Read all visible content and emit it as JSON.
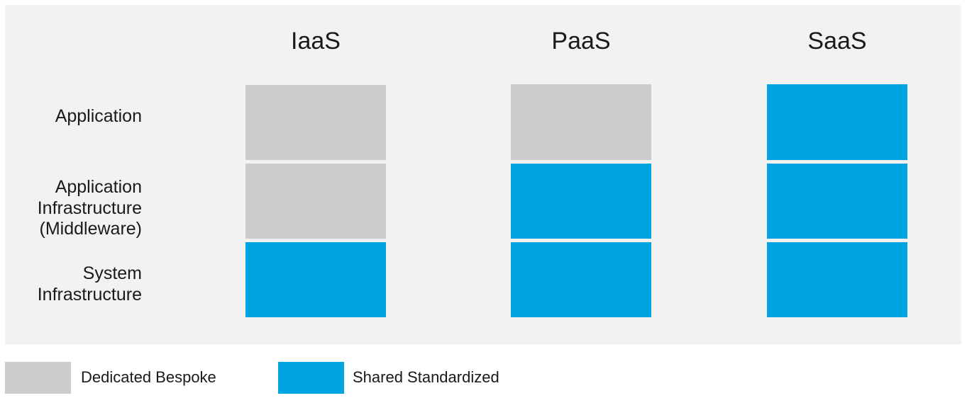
{
  "colors": {
    "dedicated": "#cccccc",
    "shared": "#00a4e0",
    "panel": "#f2f2f2"
  },
  "columns": [
    {
      "title": "IaaS",
      "layers": [
        "dedicated",
        "dedicated",
        "shared"
      ]
    },
    {
      "title": "PaaS",
      "layers": [
        "dedicated",
        "shared",
        "shared"
      ]
    },
    {
      "title": "SaaS",
      "layers": [
        "shared",
        "shared",
        "shared"
      ]
    }
  ],
  "rows": [
    {
      "label": "Application"
    },
    {
      "label": "Application\nInfrastructure\n(Middleware)"
    },
    {
      "label": "System\nInfrastructure"
    }
  ],
  "legend": {
    "dedicated_label": "Dedicated Bespoke",
    "shared_label": "Shared Standardized"
  }
}
